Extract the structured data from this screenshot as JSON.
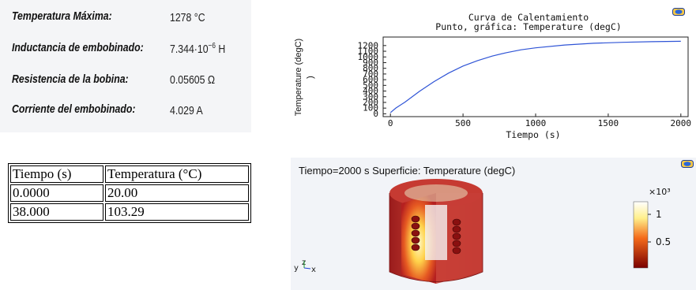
{
  "results": {
    "rows": [
      {
        "label": "Temperatura Máxima:",
        "value": "1278 °C"
      },
      {
        "label": "Inductancia de embobinado:",
        "value_main": "7.344·10",
        "value_exp": "−6",
        "value_unit": " H"
      },
      {
        "label": "Resistencia de la bobina:",
        "value": "0.05605 Ω"
      },
      {
        "label": "Corriente del embobinado:",
        "value": "4.029 A"
      }
    ]
  },
  "table": {
    "headers": [
      "Tiempo (s)",
      "Temperatura (°C)"
    ],
    "rows": [
      [
        "0.0000",
        "20.00"
      ],
      [
        "38.000",
        "103.29"
      ]
    ]
  },
  "plot1": {
    "title_line1": "Curva de Calentamiento",
    "title_line2": "Punto, gráfica: Temperature (degC)",
    "ylabel": "Temperature (degC\n)",
    "xlabel": "Tiempo (s)",
    "camera_icon": "camera-icon"
  },
  "plot2": {
    "title": "Tiempo=2000 s  Superficie: Temperature (degC)",
    "colorbar_exp": "×10³",
    "colorbar_ticks": [
      "1",
      "0.5"
    ],
    "axis_triad": "y z x",
    "camera_icon": "camera-icon",
    "colors": {
      "hot": "#ffffe0",
      "mid": "#e6401a",
      "cold": "#7a0000"
    }
  },
  "chart_data": {
    "type": "line",
    "title": "Curva de Calentamiento",
    "subtitle": "Punto, gráfica: Temperature (degC)",
    "xlabel": "Tiempo (s)",
    "ylabel": "Temperature (degC)",
    "xlim": [
      -50,
      2050
    ],
    "ylim": [
      -50,
      1350
    ],
    "xticks": [
      0,
      500,
      1000,
      1500,
      2000
    ],
    "yticks": [
      0,
      100,
      200,
      300,
      400,
      500,
      600,
      700,
      800,
      900,
      1000,
      1100,
      1200
    ],
    "grid": false,
    "series": [
      {
        "x": [
          0,
          38,
          100,
          200,
          300,
          400,
          500,
          600,
          700,
          800,
          900,
          1000,
          1200,
          1400,
          1600,
          1800,
          2000
        ],
        "y": [
          20,
          103,
          205,
          395,
          565,
          715,
          840,
          935,
          1015,
          1075,
          1125,
          1160,
          1210,
          1240,
          1257,
          1268,
          1275
        ],
        "color": "#2f54d6"
      }
    ]
  }
}
